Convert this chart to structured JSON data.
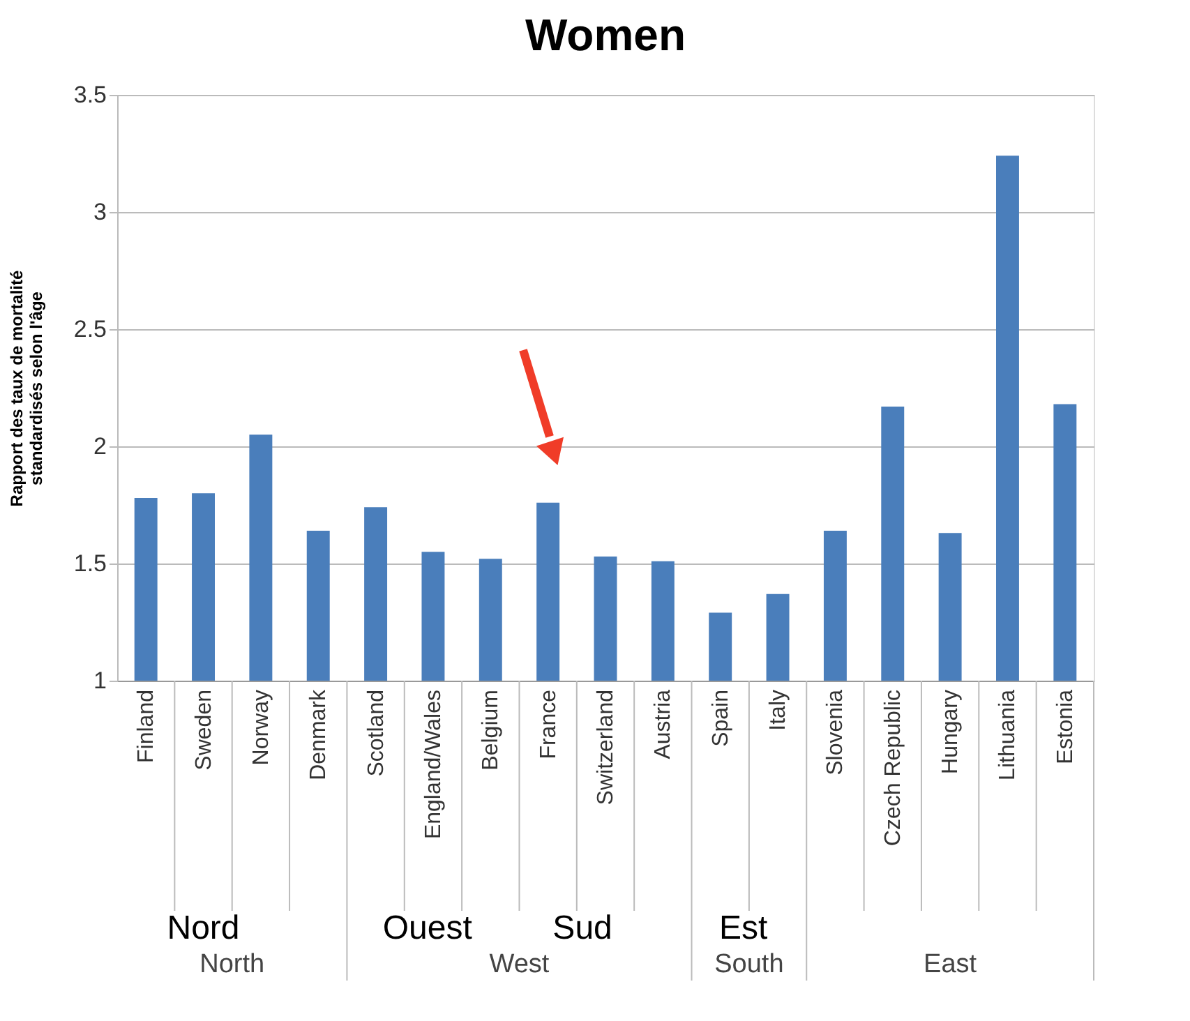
{
  "chart_data": {
    "type": "bar",
    "title": "Women",
    "ylabel": "Rapport des taux de mortalité\nstandardisés selon l'âge",
    "categories": [
      "Finland",
      "Sweden",
      "Norway",
      "Denmark",
      "Scotland",
      "England/Wales",
      "Belgium",
      "France",
      "Switzerland",
      "Austria",
      "Spain",
      "Italy",
      "Slovenia",
      "Czech Republic",
      "Hungary",
      "Lithuania",
      "Estonia"
    ],
    "values": [
      1.78,
      1.8,
      2.05,
      1.64,
      1.74,
      1.55,
      1.52,
      1.76,
      1.53,
      1.51,
      1.29,
      1.37,
      1.64,
      2.17,
      1.63,
      3.24,
      2.18
    ],
    "color": "#4a7ebb",
    "ylim": [
      1,
      3.5
    ],
    "yticks": [
      1,
      1.5,
      2,
      2.5,
      3,
      3.5
    ],
    "grid": "y",
    "annotations": [
      "Nord",
      "Ouest",
      "Sud",
      "Est",
      "North",
      "West",
      "South",
      "East"
    ]
  }
}
